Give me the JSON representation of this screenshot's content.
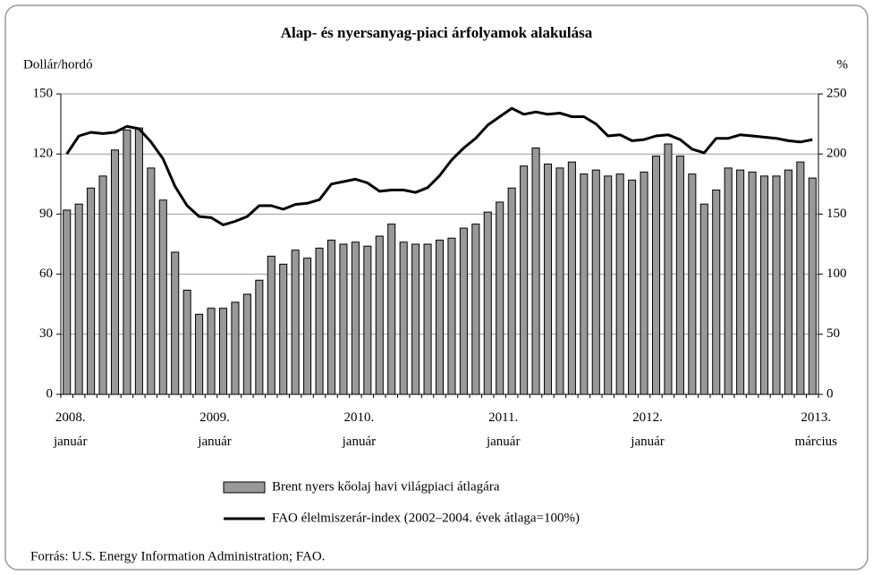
{
  "chart_data": {
    "type": "bar",
    "title": "Alap- és nyersanyag-piaci árfolyamok alakulása",
    "ylabel": "Dollár/hordó",
    "y2label": "%",
    "source": "Forrás: U.S. Energy Information Administration; FAO.",
    "categories": [
      "2008.\njanuár",
      null,
      null,
      null,
      null,
      null,
      null,
      null,
      null,
      null,
      null,
      null,
      "2009.\njanuár",
      null,
      null,
      null,
      null,
      null,
      null,
      null,
      null,
      null,
      null,
      null,
      "2010.\njanuár",
      null,
      null,
      null,
      null,
      null,
      null,
      null,
      null,
      null,
      null,
      null,
      "2011.\njanuár",
      null,
      null,
      null,
      null,
      null,
      null,
      null,
      null,
      null,
      null,
      null,
      "2012.\njanuár",
      null,
      null,
      null,
      null,
      null,
      null,
      null,
      null,
      null,
      null,
      null,
      null,
      null,
      "2013.\nmárcius"
    ],
    "series": [
      {
        "name": "Brent nyers kőolaj havi világpiaci átlagára",
        "type": "bar",
        "color": "#999999",
        "values": [
          92,
          95,
          103,
          109,
          122,
          132,
          133,
          113,
          97,
          71,
          52,
          40,
          43,
          43,
          46,
          50,
          57,
          69,
          65,
          72,
          68,
          73,
          77,
          75,
          76,
          74,
          79,
          85,
          76,
          75,
          75,
          77,
          78,
          83,
          85,
          91,
          96,
          103,
          114,
          123,
          115,
          113,
          116,
          110,
          112,
          109,
          110,
          107,
          111,
          119,
          125,
          119,
          110,
          95,
          102,
          113,
          112,
          111,
          109,
          109,
          112,
          116,
          108
        ]
      },
      {
        "name": "FAO élelmiszerár-index (2002–2004. évek átlaga=100%)",
        "type": "line",
        "color": "#000000",
        "axis": "y2",
        "values": [
          200,
          215,
          218,
          217,
          218,
          223,
          221,
          210,
          196,
          173,
          157,
          148,
          147,
          141,
          144,
          148,
          157,
          157,
          154,
          158,
          159,
          162,
          175,
          177,
          179,
          176,
          169,
          170,
          170,
          168,
          172,
          182,
          195,
          205,
          213,
          224,
          231,
          238,
          233,
          235,
          233,
          234,
          231,
          231,
          225,
          215,
          216,
          211,
          212,
          215,
          216,
          212,
          204,
          201,
          213,
          213,
          216,
          215,
          214,
          213,
          211,
          210,
          212
        ]
      }
    ],
    "ylim": [
      0,
      150
    ],
    "yticks": [
      0,
      30,
      60,
      90,
      120,
      150
    ],
    "y2lim": [
      0,
      250
    ],
    "y2ticks": [
      0,
      50,
      100,
      150,
      200,
      250
    ],
    "grid": true
  }
}
